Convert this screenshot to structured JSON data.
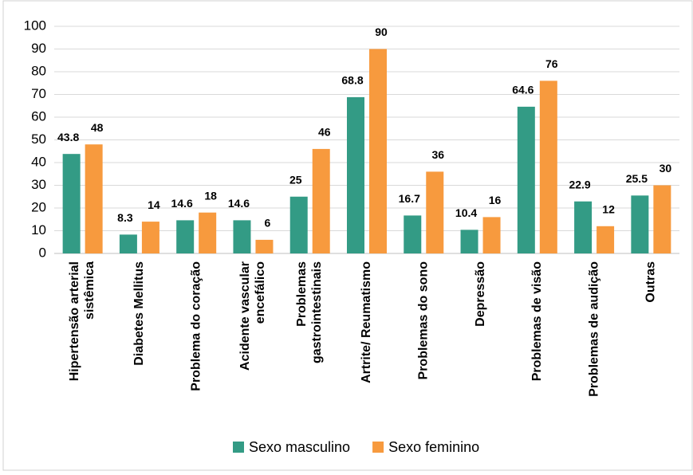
{
  "chart_data": {
    "type": "bar",
    "categories": [
      "Hipertensão arterial sistêmica",
      "Diabetes Mellitus",
      "Problema do coração",
      "Acidente vascular encefálico",
      "Problemas gastrointestinais",
      "Artrite/ Reumatismo",
      "Problemas do sono",
      "Depressão",
      "Problemas de visão",
      "Problemas de audição",
      "Outras"
    ],
    "series": [
      {
        "name": "Sexo masculino",
        "color": "#339b85",
        "values": [
          43.8,
          8.3,
          14.6,
          14.6,
          25,
          68.8,
          16.7,
          10.4,
          64.6,
          22.9,
          25.5
        ]
      },
      {
        "name": "Sexo feminino",
        "color": "#f79a3e",
        "values": [
          48,
          14,
          18,
          6,
          46,
          90,
          36,
          16,
          76,
          12,
          30
        ]
      }
    ],
    "ylim": [
      0,
      100
    ],
    "yticks": [
      0,
      10,
      20,
      30,
      40,
      50,
      60,
      70,
      80,
      90,
      100
    ],
    "grid": true,
    "legend": "bottom"
  }
}
